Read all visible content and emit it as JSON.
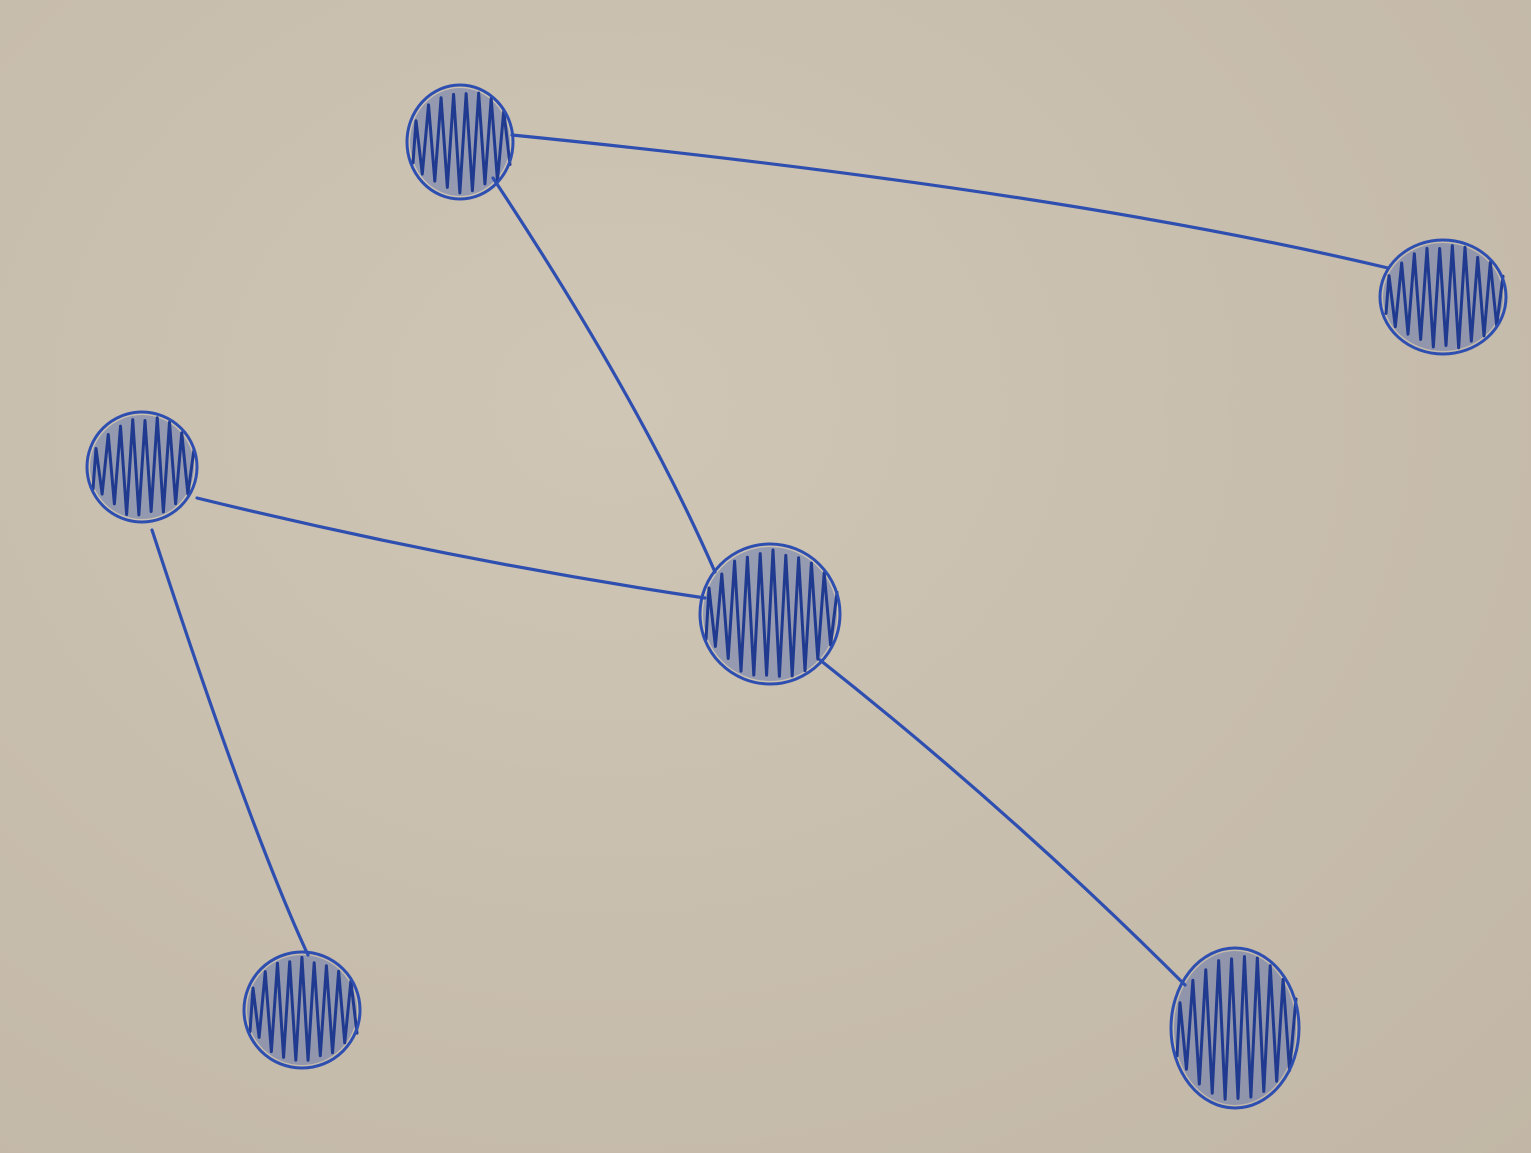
{
  "diagram": {
    "type": "graph",
    "style": "hand-drawn marker on whiteboard",
    "colors": {
      "board": "#cbc1b1",
      "ink": "#2e4fb0",
      "ink_dark": "#1f3a8f"
    },
    "nodes": [
      {
        "id": "n1"
      },
      {
        "id": "n2"
      },
      {
        "id": "n3"
      },
      {
        "id": "n4"
      },
      {
        "id": "n5"
      },
      {
        "id": "n6"
      }
    ],
    "edges": [
      {
        "from": "n1",
        "to": "n2"
      },
      {
        "from": "n1",
        "to": "n4"
      },
      {
        "from": "n3",
        "to": "n4"
      },
      {
        "from": "n3",
        "to": "n5"
      },
      {
        "from": "n4",
        "to": "n6"
      }
    ]
  }
}
